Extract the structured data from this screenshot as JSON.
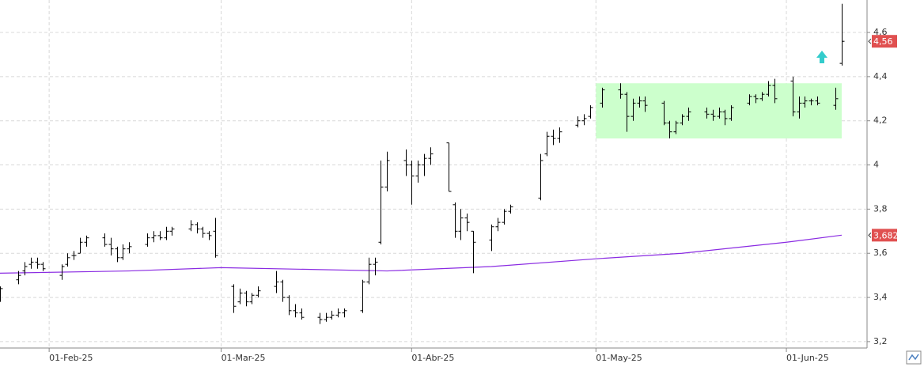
{
  "chart_data": {
    "type": "ohlc",
    "xlim": [
      "2025-01-24",
      "2025-06-14"
    ],
    "ylim": [
      3.171,
      4.747
    ],
    "grid": true,
    "color": "#000000",
    "xticks": [
      {
        "value": "2025-02-01",
        "label": "01-Feb-25"
      },
      {
        "value": "2025-03-01",
        "label": "01-Mar-25"
      },
      {
        "value": "2025-04-01",
        "label": "01-Abr-25"
      },
      {
        "value": "2025-05-01",
        "label": "01-May-25"
      },
      {
        "value": "2025-06-01",
        "label": "01-Jun-25"
      }
    ],
    "yticks": [
      {
        "value": 3.2,
        "label": "3,2"
      },
      {
        "value": 3.4,
        "label": "3,4"
      },
      {
        "value": 3.6,
        "label": "3,6"
      },
      {
        "value": 3.8,
        "label": "3,8"
      },
      4,
      {
        "value": 4.2,
        "label": "4,2"
      },
      {
        "value": 4.4,
        "label": "4,4"
      },
      {
        "value": 4.6,
        "label": "4,6"
      }
    ],
    "x": [
      "2025-01-24",
      "2025-01-27",
      "2025-01-28",
      "2025-01-29",
      "2025-01-30",
      "2025-01-31",
      "2025-02-03",
      "2025-02-04",
      "2025-02-05",
      "2025-02-06",
      "2025-02-07",
      "2025-02-10",
      "2025-02-11",
      "2025-02-12",
      "2025-02-13",
      "2025-02-14",
      "2025-02-17",
      "2025-02-18",
      "2025-02-19",
      "2025-02-20",
      "2025-02-21",
      "2025-02-24",
      "2025-02-25",
      "2025-02-26",
      "2025-02-27",
      "2025-02-28",
      "2025-03-03",
      "2025-03-04",
      "2025-03-05",
      "2025-03-06",
      "2025-03-07",
      "2025-03-10",
      "2025-03-11",
      "2025-03-12",
      "2025-03-13",
      "2025-03-14",
      "2025-03-17",
      "2025-03-18",
      "2025-03-19",
      "2025-03-20",
      "2025-03-21",
      "2025-03-24",
      "2025-03-25",
      "2025-03-26",
      "2025-03-27",
      "2025-03-28",
      "2025-03-31",
      "2025-04-01",
      "2025-04-02",
      "2025-04-03",
      "2025-04-04",
      "2025-04-07",
      "2025-04-08",
      "2025-04-09",
      "2025-04-10",
      "2025-04-11",
      "2025-04-14",
      "2025-04-15",
      "2025-04-16",
      "2025-04-17",
      "2025-04-22",
      "2025-04-23",
      "2025-04-24",
      "2025-04-25",
      "2025-04-28",
      "2025-04-29",
      "2025-04-30",
      "2025-05-02",
      "2025-05-05",
      "2025-05-06",
      "2025-05-07",
      "2025-05-08",
      "2025-05-09",
      "2025-05-12",
      "2025-05-13",
      "2025-05-14",
      "2025-05-15",
      "2025-05-16",
      "2025-05-19",
      "2025-05-20",
      "2025-05-21",
      "2025-05-22",
      "2025-05-23",
      "2025-05-26",
      "2025-05-27",
      "2025-05-28",
      "2025-05-29",
      "2025-05-30",
      "2025-06-02",
      "2025-06-03",
      "2025-06-04",
      "2025-06-05",
      "2025-06-06",
      "2025-06-09",
      "2025-06-10"
    ],
    "open": [
      3.4,
      3.48,
      3.52,
      3.55,
      3.56,
      3.55,
      3.5,
      3.55,
      3.59,
      3.6,
      3.65,
      3.67,
      3.64,
      3.62,
      3.58,
      3.62,
      3.64,
      3.67,
      3.68,
      3.67,
      3.7,
      3.71,
      3.73,
      3.71,
      3.69,
      3.7,
      3.45,
      3.38,
      3.42,
      3.38,
      3.41,
      3.45,
      3.47,
      3.4,
      3.34,
      3.33,
      3.31,
      3.3,
      3.31,
      3.32,
      3.33,
      3.34,
      3.47,
      3.55,
      3.65,
      3.9,
      4.02,
      4.0,
      3.95,
      4.0,
      4.03,
      4.1,
      3.82,
      3.7,
      3.76,
      3.7,
      3.66,
      3.72,
      3.74,
      3.79,
      3.85,
      4.05,
      4.13,
      4.12,
      4.18,
      4.2,
      4.22,
      4.28,
      4.34,
      4.32,
      4.22,
      4.28,
      4.29,
      4.28,
      4.19,
      4.15,
      4.19,
      4.22,
      4.24,
      4.23,
      4.22,
      4.24,
      4.21,
      4.28,
      4.31,
      4.3,
      4.32,
      4.36,
      4.38,
      4.24,
      4.28,
      4.29,
      4.29,
      4.27,
      4.46
    ],
    "high": [
      3.45,
      3.52,
      3.56,
      3.58,
      3.58,
      3.56,
      3.55,
      3.6,
      3.61,
      3.67,
      3.68,
      3.69,
      3.67,
      3.63,
      3.64,
      3.65,
      3.69,
      3.7,
      3.7,
      3.72,
      3.72,
      3.75,
      3.74,
      3.72,
      3.7,
      3.76,
      3.46,
      3.44,
      3.43,
      3.42,
      3.45,
      3.52,
      3.48,
      3.41,
      3.37,
      3.35,
      3.33,
      3.33,
      3.34,
      3.35,
      3.35,
      3.48,
      3.58,
      3.58,
      4.02,
      4.06,
      4.07,
      4.02,
      4.02,
      4.05,
      4.08,
      4.1,
      3.83,
      3.8,
      3.78,
      3.7,
      3.73,
      3.76,
      3.8,
      3.82,
      4.05,
      4.15,
      4.16,
      4.17,
      4.22,
      4.23,
      4.27,
      4.35,
      4.37,
      4.33,
      4.3,
      4.31,
      4.31,
      4.29,
      4.2,
      4.2,
      4.23,
      4.26,
      4.26,
      4.25,
      4.26,
      4.25,
      4.27,
      4.32,
      4.32,
      4.33,
      4.38,
      4.39,
      4.4,
      4.31,
      4.31,
      4.3,
      4.31,
      4.35,
      4.73
    ],
    "low": [
      3.38,
      3.46,
      3.5,
      3.53,
      3.53,
      3.52,
      3.48,
      3.54,
      3.57,
      3.6,
      3.63,
      3.63,
      3.59,
      3.56,
      3.57,
      3.6,
      3.63,
      3.65,
      3.66,
      3.66,
      3.68,
      3.7,
      3.69,
      3.67,
      3.66,
      3.58,
      3.33,
      3.37,
      3.36,
      3.37,
      3.4,
      3.42,
      3.38,
      3.32,
      3.31,
      3.3,
      3.28,
      3.29,
      3.3,
      3.31,
      3.31,
      3.33,
      3.46,
      3.5,
      3.64,
      3.88,
      3.95,
      3.82,
      3.92,
      3.95,
      4.0,
      3.88,
      3.67,
      3.66,
      3.7,
      3.51,
      3.61,
      3.7,
      3.73,
      3.78,
      3.84,
      4.04,
      4.09,
      4.1,
      4.17,
      4.18,
      4.21,
      4.26,
      4.3,
      4.15,
      4.2,
      4.26,
      4.24,
      4.18,
      4.12,
      4.14,
      4.18,
      4.2,
      4.21,
      4.2,
      4.21,
      4.18,
      4.2,
      4.27,
      4.28,
      4.29,
      4.31,
      4.28,
      4.22,
      4.21,
      4.26,
      4.27,
      4.27,
      4.25,
      4.45
    ],
    "close": [
      3.44,
      3.5,
      3.54,
      3.56,
      3.55,
      3.53,
      3.54,
      3.58,
      3.59,
      3.65,
      3.67,
      3.64,
      3.62,
      3.58,
      3.62,
      3.63,
      3.67,
      3.68,
      3.67,
      3.7,
      3.71,
      3.73,
      3.71,
      3.69,
      3.68,
      3.59,
      3.36,
      3.42,
      3.38,
      3.41,
      3.43,
      3.47,
      3.4,
      3.34,
      3.33,
      3.31,
      3.3,
      3.31,
      3.32,
      3.33,
      3.34,
      3.47,
      3.55,
      3.56,
      3.9,
      4.02,
      4.0,
      3.95,
      4.0,
      4.03,
      4.05,
      3.88,
      3.7,
      3.76,
      3.74,
      3.65,
      3.72,
      3.74,
      3.79,
      3.81,
      4.02,
      4.13,
      4.12,
      4.15,
      4.2,
      4.21,
      4.26,
      4.34,
      4.32,
      4.22,
      4.28,
      4.29,
      4.27,
      4.19,
      4.15,
      4.19,
      4.22,
      4.24,
      4.23,
      4.22,
      4.24,
      4.21,
      4.26,
      4.31,
      4.3,
      4.32,
      4.36,
      4.3,
      4.24,
      4.28,
      4.29,
      4.29,
      4.28,
      4.3,
      4.56
    ],
    "close_label": "4,56",
    "close_label_color": "#e05050",
    "range_box": {
      "x": [
        "2025-05-01",
        "2025-06-10"
      ],
      "y": [
        4.12,
        4.37
      ],
      "color": "#ccffcc"
    },
    "moving_average": {
      "color": "#8a2be2",
      "x": [
        "2025-01-24",
        "2025-02-14",
        "2025-03-01",
        "2025-03-28",
        "2025-04-14",
        "2025-05-01",
        "2025-05-15",
        "2025-06-01",
        "2025-06-10"
      ],
      "values": [
        3.51,
        3.52,
        3.535,
        3.52,
        3.54,
        3.575,
        3.6,
        3.65,
        3.682
      ],
      "last_label": "3,682",
      "label_color": "#e05050"
    }
  }
}
